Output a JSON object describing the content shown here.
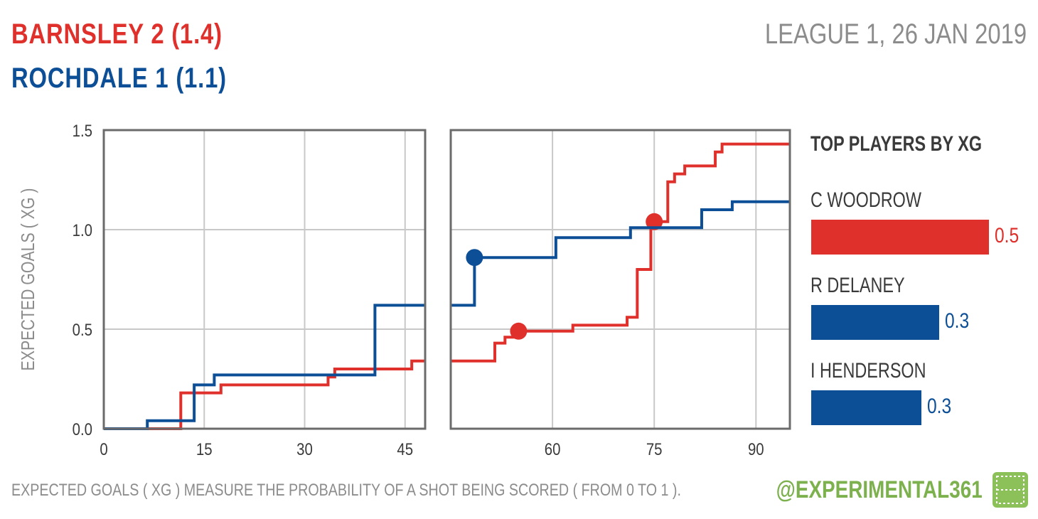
{
  "header": {
    "home_line": "BARNSLEY 2 (1.4)",
    "away_line": "ROCHDALE 1 (1.1)",
    "match_info": "LEAGUE 1, 26 JAN 2019"
  },
  "colors": {
    "home": "#e0302c",
    "away": "#0d4f97",
    "axis": "#6b6b6b",
    "grid": "#c8c8c8",
    "brand": "#7db14e"
  },
  "chart_data": {
    "type": "line",
    "step": true,
    "ylabel": "EXPECTED GOALS ( XG )",
    "ylim": [
      0,
      1.5
    ],
    "yticks": [
      0.0,
      0.5,
      1.0,
      1.5
    ],
    "ytick_labels": [
      "0.0",
      "0.5",
      "1.0",
      "1.5"
    ],
    "grid": true,
    "panels": [
      {
        "name": "first-half",
        "xlim": [
          0,
          48
        ],
        "xticks": [
          0,
          15,
          30,
          45
        ],
        "xtick_labels": [
          "0",
          "15",
          "30",
          "45"
        ]
      },
      {
        "name": "second-half",
        "xlim": [
          45,
          95
        ],
        "xticks": [
          60,
          75,
          90
        ],
        "xtick_labels": [
          "60",
          "75",
          "90"
        ]
      }
    ],
    "series": [
      {
        "name": "BARNSLEY",
        "color": "#e0302c",
        "first_half": [
          [
            0,
            0
          ],
          [
            11.5,
            0.18
          ],
          [
            17.5,
            0.22
          ],
          [
            33.5,
            0.26
          ],
          [
            34.5,
            0.3
          ],
          [
            46,
            0.34
          ],
          [
            48,
            0.34
          ]
        ],
        "second_half": [
          [
            45,
            0.34
          ],
          [
            48,
            0.34
          ],
          [
            51.5,
            0.43
          ],
          [
            53,
            0.46
          ],
          [
            55,
            0.49
          ],
          [
            63,
            0.52
          ],
          [
            71,
            0.56
          ],
          [
            72.5,
            0.8
          ],
          [
            74.5,
            1.04
          ],
          [
            77,
            1.24
          ],
          [
            78,
            1.28
          ],
          [
            79.5,
            1.32
          ],
          [
            84,
            1.39
          ],
          [
            85,
            1.43
          ],
          [
            95,
            1.43
          ]
        ],
        "goals": [
          [
            55,
            0.49
          ],
          [
            75,
            1.04
          ]
        ]
      },
      {
        "name": "ROCHDALE",
        "color": "#0d4f97",
        "first_half": [
          [
            0,
            0
          ],
          [
            6.5,
            0.04
          ],
          [
            13.5,
            0.22
          ],
          [
            16.5,
            0.27
          ],
          [
            40.5,
            0.62
          ],
          [
            48,
            0.62
          ]
        ],
        "second_half": [
          [
            45,
            0.62
          ],
          [
            48.5,
            0.86
          ],
          [
            60.5,
            0.96
          ],
          [
            71.5,
            1.01
          ],
          [
            82,
            1.1
          ],
          [
            86.5,
            1.14
          ],
          [
            95,
            1.14
          ]
        ],
        "goals": [
          [
            48.5,
            0.86
          ]
        ]
      }
    ]
  },
  "top_players": {
    "title": "TOP PLAYERS BY XG",
    "players": [
      {
        "name": "C WOODROW",
        "value": 0.5,
        "value_label": "0.5",
        "team": "home",
        "fraction": 1.0
      },
      {
        "name": "R DELANEY",
        "value": 0.3,
        "value_label": "0.3",
        "team": "away",
        "fraction": 0.72
      },
      {
        "name": "I HENDERSON",
        "value": 0.3,
        "value_label": "0.3",
        "team": "away",
        "fraction": 0.62
      }
    ]
  },
  "footer": {
    "note": "EXPECTED GOALS ( XG ) MEASURE THE PROBABILITY  OF A SHOT BEING SCORED ( FROM 0 TO 1 ).",
    "handle": "@EXPERIMENTAL361"
  }
}
